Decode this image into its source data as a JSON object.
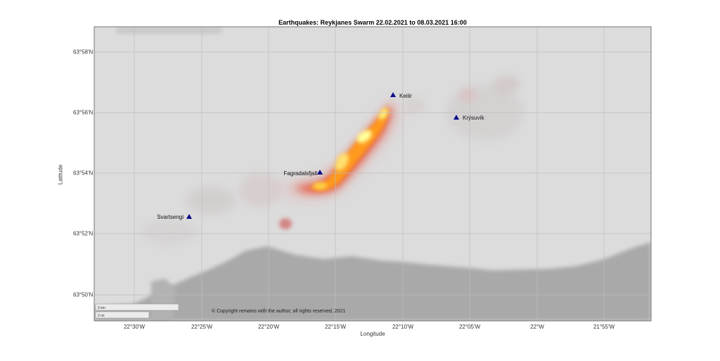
{
  "map": {
    "title": "Earthquakes: Reykjanes Swarm 22.02.2021 to 08.03.2021 16:00",
    "xlabel": "Longitude",
    "ylabel": "Latitude",
    "lat_ticks": [
      "63°58'N",
      "63°56'N",
      "63°54'N",
      "63°52'N",
      "63°50'N"
    ],
    "lon_ticks": [
      "22°30'W",
      "22°25'W",
      "22°20'W",
      "22°15'W",
      "22°10'W",
      "22°05'W",
      "22°W",
      "21°55'W"
    ],
    "places": [
      {
        "name": "Keilir"
      },
      {
        "name": "Krýsuvík"
      },
      {
        "name": "Fagradalsfjall"
      },
      {
        "name": "Svartsengi"
      }
    ],
    "scale_km": "5 km",
    "scale_mi": "2 mi",
    "copyright": "© Copyright remains with the author; all rights reserved, 2021",
    "colors": {
      "land": "#dcdcdc",
      "sea": "#a9a9a9",
      "grid": "#bdbdbd",
      "marker": "#0b0b8c",
      "heat_high": "#ffffa0",
      "heat_mid": "#ff9a1e",
      "heat_low": "#e84020"
    }
  }
}
